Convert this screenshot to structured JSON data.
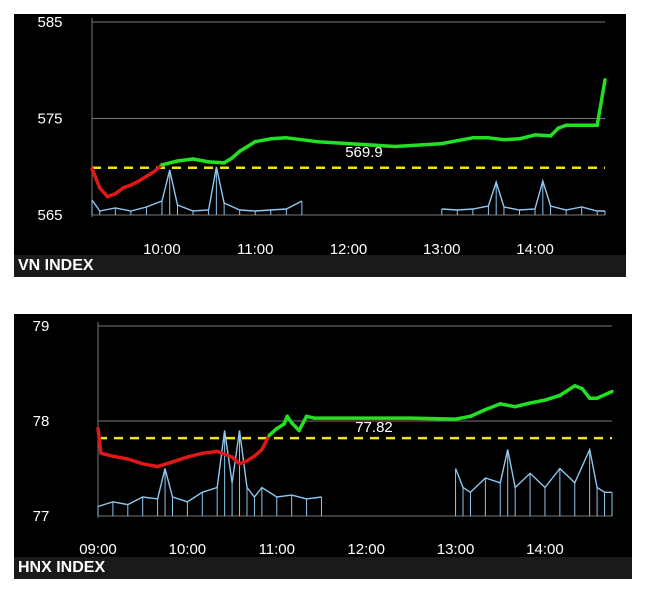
{
  "chart_data": [
    {
      "type": "line",
      "title": "VN INDEX",
      "yticks": [
        585,
        575,
        565
      ],
      "ylim": [
        565,
        585
      ],
      "xticks": [
        "10:00",
        "11:00",
        "12:00",
        "13:00",
        "14:00"
      ],
      "xlim": [
        "09:15",
        "14:45"
      ],
      "reference": {
        "value": 569.9,
        "label": "569.9"
      },
      "grid": "horizontal",
      "colors": {
        "up": "#22e022",
        "down": "#e01818",
        "reference": "#f2e21a",
        "volume": "#8ec8f0",
        "grid": "#777777"
      },
      "index_series": {
        "x": [
          "09:15",
          "09:20",
          "09:25",
          "09:30",
          "09:35",
          "09:40",
          "09:45",
          "09:50",
          "09:55",
          "10:00",
          "10:05",
          "10:10",
          "10:20",
          "10:30",
          "10:40",
          "10:45",
          "10:50",
          "10:55",
          "11:00",
          "11:10",
          "11:20",
          "11:30",
          "11:40",
          "12:00",
          "12:30",
          "13:00",
          "13:10",
          "13:20",
          "13:30",
          "13:40",
          "13:50",
          "14:00",
          "14:10",
          "14:15",
          "14:20",
          "14:30",
          "14:40",
          "14:45"
        ],
        "y": [
          569.8,
          567.8,
          566.9,
          567.2,
          567.8,
          568.1,
          568.5,
          569.0,
          569.5,
          570.2,
          570.4,
          570.6,
          570.8,
          570.5,
          570.4,
          570.9,
          571.6,
          572.1,
          572.6,
          572.9,
          573.0,
          572.8,
          572.6,
          572.4,
          572.1,
          572.4,
          572.7,
          573.0,
          573.0,
          572.8,
          572.9,
          573.3,
          573.2,
          574.0,
          574.3,
          574.3,
          574.3,
          579.0
        ]
      },
      "volume_series": {
        "x": [
          "09:15",
          "09:20",
          "09:30",
          "09:40",
          "09:50",
          "10:00",
          "10:05",
          "10:10",
          "10:20",
          "10:30",
          "10:35",
          "10:40",
          "10:50",
          "11:00",
          "11:10",
          "11:20",
          "11:30",
          "13:00",
          "13:10",
          "13:20",
          "13:30",
          "13:35",
          "13:40",
          "13:50",
          "14:00",
          "14:05",
          "14:10",
          "14:20",
          "14:30",
          "14:40",
          "14:45"
        ],
        "y": [
          1.5,
          0.4,
          0.7,
          0.4,
          0.8,
          1.4,
          4.5,
          1.0,
          0.4,
          0.5,
          4.8,
          1.2,
          0.5,
          0.4,
          0.5,
          0.6,
          1.4,
          0.6,
          0.5,
          0.6,
          0.9,
          3.3,
          0.8,
          0.5,
          0.6,
          3.4,
          0.9,
          0.5,
          0.8,
          0.4,
          0.4
        ]
      }
    },
    {
      "type": "line",
      "title": "HNX INDEX",
      "yticks": [
        79,
        78,
        77
      ],
      "ylim": [
        77,
        79
      ],
      "xticks": [
        "09:00",
        "10:00",
        "11:00",
        "12:00",
        "13:00",
        "14:00"
      ],
      "xlim": [
        "09:00",
        "14:45"
      ],
      "reference": {
        "value": 77.82,
        "label": "77.82"
      },
      "grid": "horizontal",
      "colors": {
        "up": "#22e022",
        "down": "#e01818",
        "reference": "#f2e21a",
        "volume": "#8ec8f0",
        "grid": "#777777"
      },
      "index_series": {
        "x": [
          "09:00",
          "09:02",
          "09:10",
          "09:20",
          "09:30",
          "09:40",
          "09:50",
          "10:00",
          "10:10",
          "10:20",
          "10:30",
          "10:35",
          "10:40",
          "10:45",
          "10:50",
          "10:55",
          "11:00",
          "11:05",
          "11:07",
          "11:10",
          "11:15",
          "11:20",
          "11:25",
          "11:30",
          "12:00",
          "12:30",
          "13:00",
          "13:10",
          "13:20",
          "13:30",
          "13:40",
          "13:50",
          "14:00",
          "14:10",
          "14:20",
          "14:25",
          "14:30",
          "14:35",
          "14:45"
        ],
        "y": [
          77.92,
          77.66,
          77.63,
          77.6,
          77.55,
          77.52,
          77.57,
          77.62,
          77.66,
          77.68,
          77.62,
          77.55,
          77.58,
          77.63,
          77.7,
          77.85,
          77.92,
          77.97,
          78.05,
          77.98,
          77.9,
          78.05,
          78.03,
          78.03,
          78.03,
          78.03,
          78.02,
          78.05,
          78.12,
          78.18,
          78.15,
          78.19,
          78.22,
          78.27,
          78.37,
          78.34,
          78.24,
          78.24,
          78.31
        ]
      },
      "volume_series": {
        "x": [
          "09:00",
          "09:10",
          "09:20",
          "09:30",
          "09:40",
          "09:45",
          "09:50",
          "10:00",
          "10:10",
          "10:20",
          "10:25",
          "10:30",
          "10:35",
          "10:40",
          "10:45",
          "10:50",
          "11:00",
          "11:10",
          "11:20",
          "11:30",
          "13:00",
          "13:05",
          "13:10",
          "13:20",
          "13:30",
          "13:35",
          "13:40",
          "13:50",
          "14:00",
          "14:10",
          "14:20",
          "14:30",
          "14:35",
          "14:40",
          "14:45"
        ],
        "y": [
          0.1,
          0.15,
          0.12,
          0.2,
          0.18,
          0.5,
          0.2,
          0.15,
          0.25,
          0.3,
          0.9,
          0.35,
          0.9,
          0.3,
          0.2,
          0.3,
          0.2,
          0.22,
          0.18,
          0.2,
          0.5,
          0.3,
          0.25,
          0.4,
          0.35,
          0.7,
          0.3,
          0.45,
          0.3,
          0.5,
          0.35,
          0.7,
          0.3,
          0.25,
          0.25
        ]
      }
    }
  ]
}
